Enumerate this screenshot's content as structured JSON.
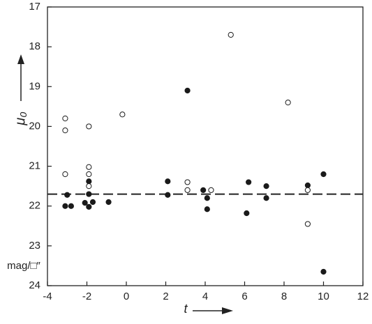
{
  "chart_data": {
    "type": "scatter",
    "y_label": "μ₀",
    "x_label": "t",
    "annotation": "mag/□″",
    "xlim": [
      -4,
      12
    ],
    "xticks": [
      -4,
      -2,
      0,
      2,
      4,
      6,
      8,
      10,
      12
    ],
    "ylim": [
      17,
      24
    ],
    "yticks": [
      17,
      18,
      19,
      20,
      21,
      22,
      23,
      24
    ],
    "y_reversed": true,
    "reference_line": 21.7,
    "series": [
      {
        "marker": "filled",
        "color": "#1a1a1a",
        "x": [
          -3.1,
          -3.0,
          -2.8,
          -2.1,
          -1.9,
          -1.9,
          -1.9,
          -1.7,
          -0.9,
          2.1,
          2.1,
          3.1,
          3.9,
          4.1,
          4.1,
          6.1,
          6.2,
          7.1,
          7.1,
          9.2,
          10.0,
          10.0
        ],
        "values": [
          22.0,
          21.72,
          22.0,
          21.92,
          21.38,
          21.7,
          22.02,
          21.9,
          21.9,
          21.38,
          21.72,
          19.1,
          21.6,
          21.8,
          22.08,
          22.18,
          21.4,
          21.5,
          21.8,
          21.48,
          23.65,
          21.2
        ]
      },
      {
        "marker": "open",
        "color": "#1a1a1a",
        "x": [
          -3.1,
          -3.1,
          -3.1,
          -1.9,
          -1.9,
          -1.9,
          -1.9,
          -0.2,
          3.1,
          3.1,
          4.3,
          5.3,
          8.2,
          9.2,
          9.2
        ],
        "values": [
          19.8,
          20.1,
          21.2,
          20.0,
          21.02,
          21.2,
          21.5,
          19.7,
          21.4,
          21.6,
          21.6,
          17.7,
          19.4,
          21.6,
          22.45
        ]
      }
    ]
  }
}
